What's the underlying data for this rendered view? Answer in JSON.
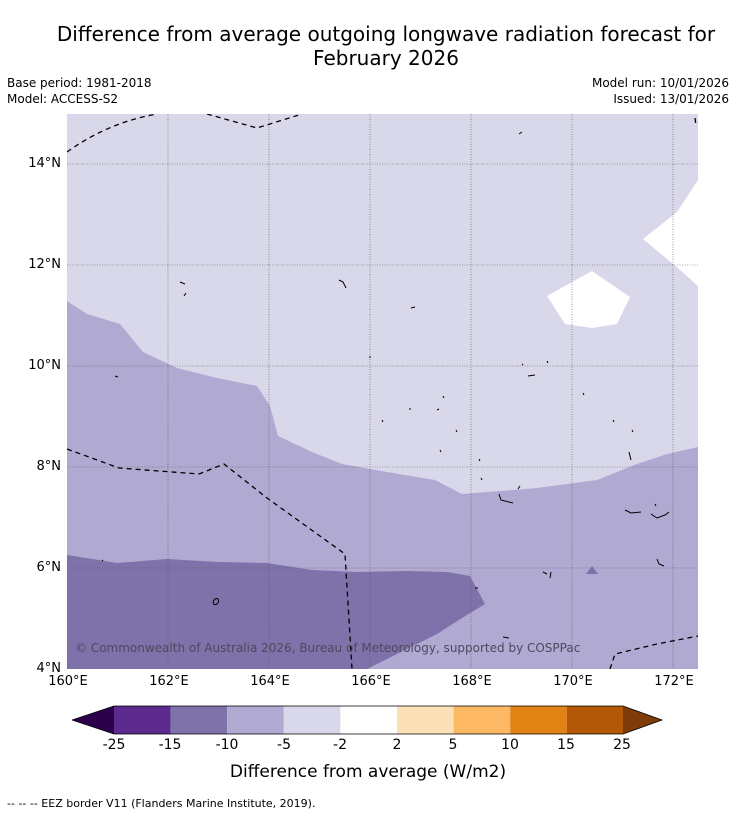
{
  "title_line1": "Difference from average outgoing longwave radiation forecast for",
  "title_line2": "February 2026",
  "base_period": "Base period: 1981-2018",
  "model": "Model: ACCESS-S2",
  "model_run": "Model run: 10/01/2026",
  "issued": "Issued: 13/01/2026",
  "copyright": "© Commonwealth of Australia 2026, Bureau of Meteorology, supported by COSPPac",
  "lat_labels": [
    "14°N",
    "12°N",
    "10°N",
    "8°N",
    "6°N",
    "4°N"
  ],
  "lon_labels": [
    "160°E",
    "162°E",
    "164°E",
    "166°E",
    "168°E",
    "170°E",
    "172°E"
  ],
  "colorbar": {
    "title": "Difference from average (W/m2)",
    "tick_labels": [
      "-25",
      "-15",
      "-10",
      "-5",
      "-2",
      "2",
      "5",
      "10",
      "15",
      "25"
    ],
    "colors": [
      "#2d004b",
      "#5b2a8c",
      "#7f71a9",
      "#b0a9d2",
      "#d8d8ea",
      "#ffffff",
      "#fee0b6",
      "#fdb863",
      "#e08214",
      "#b35806",
      "#7f3b08"
    ]
  },
  "footnote": "--  --  -- EEZ border V11 (Flanders Marine Institute, 2019)."
}
